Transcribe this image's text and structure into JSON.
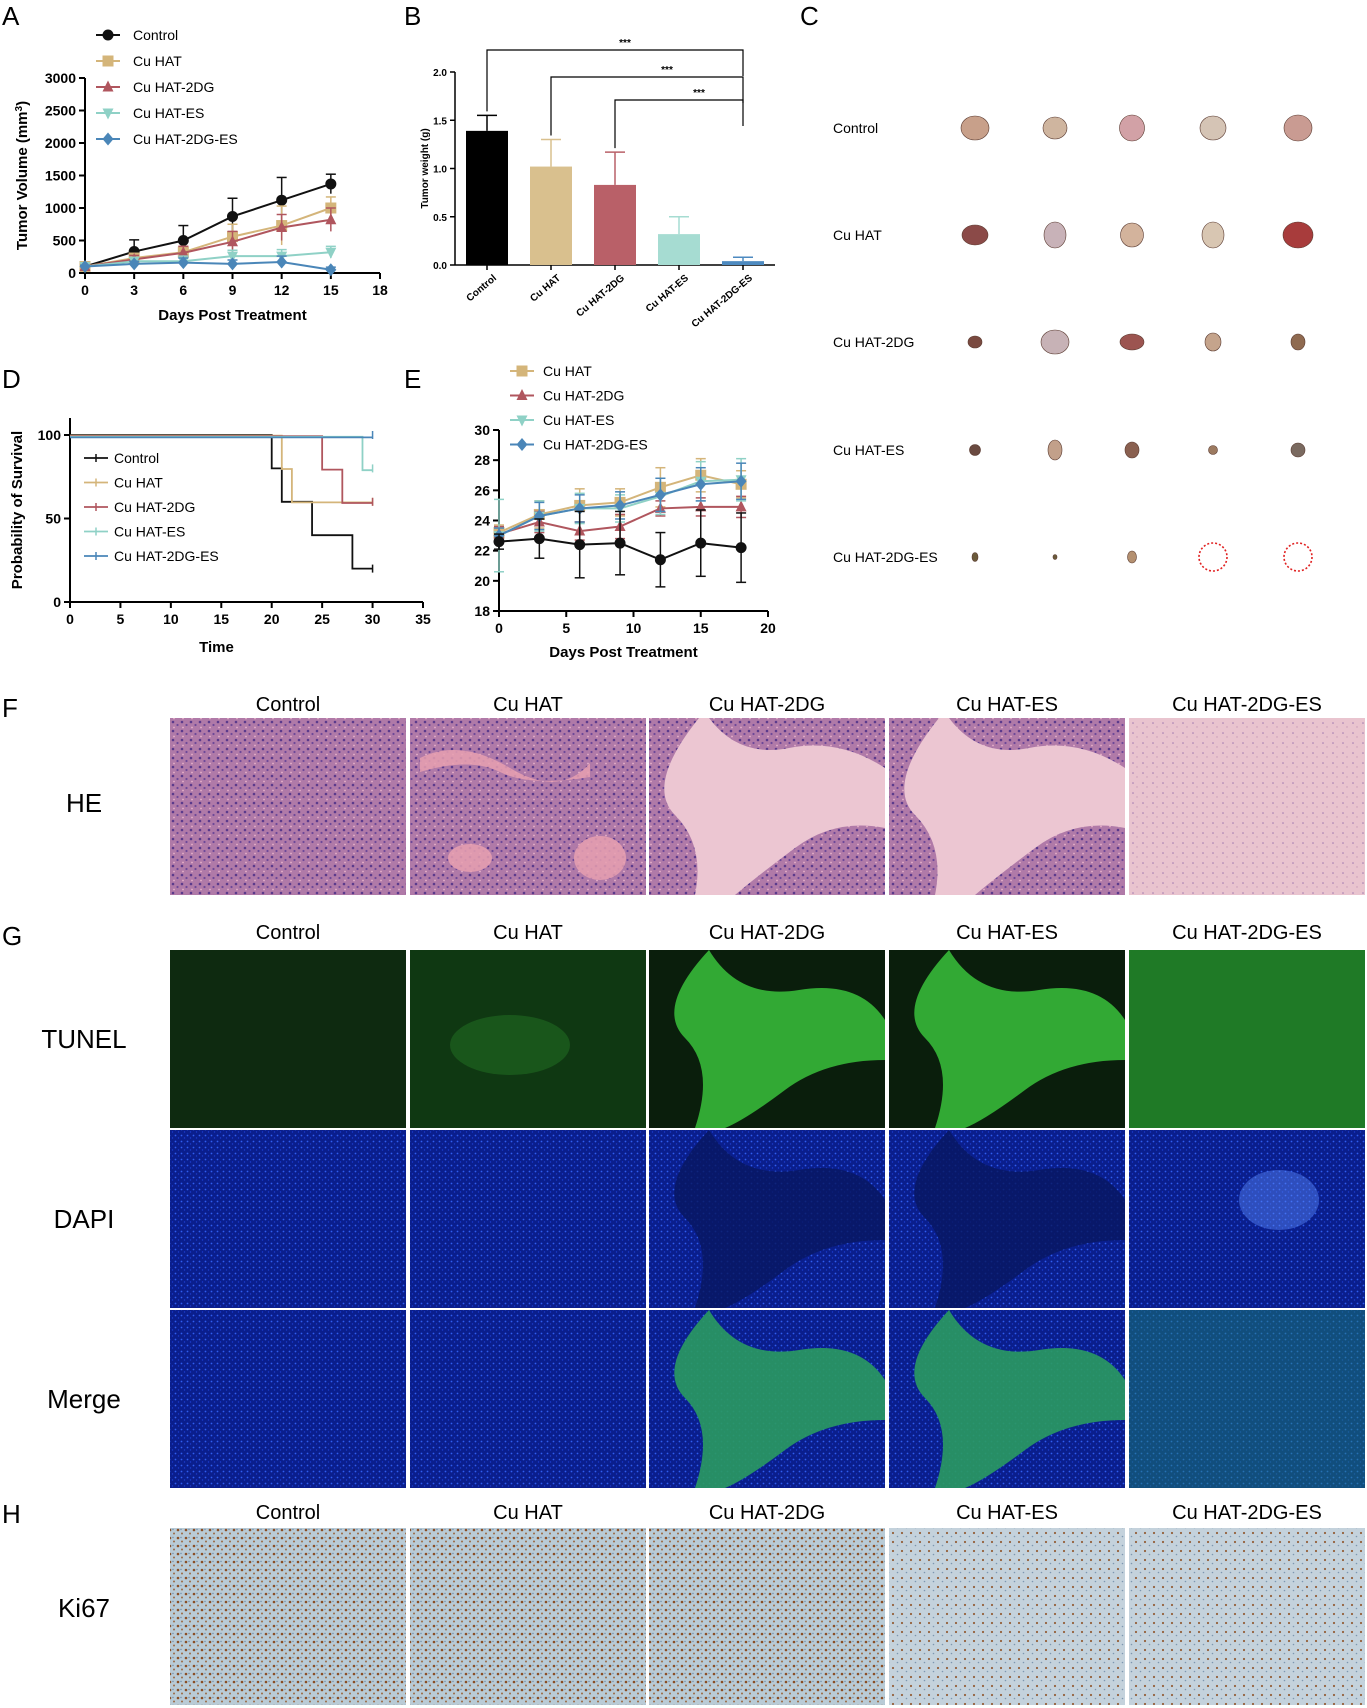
{
  "panels": {
    "A": "A",
    "B": "B",
    "C": "C",
    "D": "D",
    "E": "E",
    "F": "F",
    "G": "G",
    "H": "H"
  },
  "colors": {
    "Control": "#111111",
    "Cu HAT": "#d4b57a",
    "Cu HAT-2DG": "#b0565e",
    "Cu HAT-ES": "#8fd1c6",
    "Cu HAT-2DG-ES": "#4a86b8",
    "fill_C": "#000000",
    "fill_HAT": "#d9c08e",
    "fill_2DG": "#b96068",
    "fill_ES": "#a6dcd2",
    "fill_2DGES": "#4d8ac0",
    "circle": "#e02020"
  },
  "chart_data": [
    {
      "id": "A",
      "type": "line",
      "title": "",
      "xlabel": "Days Post Treatment",
      "ylabel": "Tumor Volume (mm",
      "ylabel_sup": "3",
      "ylabel_tail": ")",
      "xlim": [
        0,
        18
      ],
      "ylim": [
        0,
        3000
      ],
      "xticks": [
        0,
        3,
        6,
        9,
        12,
        15,
        18
      ],
      "yticks": [
        0,
        500,
        1000,
        1500,
        2000,
        2500,
        3000
      ],
      "legend_position": "top-left",
      "series": [
        {
          "name": "Control",
          "marker": "circle",
          "x": [
            0,
            3,
            6,
            9,
            12,
            15
          ],
          "y": [
            100,
            330,
            500,
            870,
            1120,
            1370
          ],
          "err": [
            20,
            180,
            230,
            280,
            350,
            150
          ]
        },
        {
          "name": "Cu HAT",
          "marker": "square",
          "x": [
            0,
            3,
            6,
            9,
            12,
            15
          ],
          "y": [
            100,
            230,
            320,
            560,
            730,
            1000
          ],
          "err": [
            20,
            70,
            90,
            190,
            300,
            170
          ]
        },
        {
          "name": "Cu HAT-2DG",
          "marker": "triangle",
          "x": [
            0,
            3,
            6,
            9,
            12,
            15
          ],
          "y": [
            100,
            210,
            310,
            480,
            700,
            820
          ],
          "err": [
            20,
            60,
            100,
            160,
            200,
            180
          ]
        },
        {
          "name": "Cu HAT-ES",
          "marker": "triangle-down",
          "x": [
            0,
            3,
            6,
            9,
            12,
            15
          ],
          "y": [
            100,
            180,
            180,
            260,
            260,
            320
          ],
          "err": [
            20,
            60,
            80,
            90,
            100,
            90
          ]
        },
        {
          "name": "Cu HAT-2DG-ES",
          "marker": "diamond",
          "x": [
            0,
            3,
            6,
            9,
            12,
            15
          ],
          "y": [
            100,
            140,
            160,
            140,
            170,
            50
          ],
          "err": [
            20,
            40,
            70,
            60,
            90,
            40
          ]
        }
      ]
    },
    {
      "id": "B",
      "type": "bar",
      "title": "",
      "xlabel": "",
      "ylabel": "Tumor weight (g)",
      "ylim": [
        0,
        2.0
      ],
      "yticks": [
        "0.0",
        "0.5",
        "1.0",
        "1.5",
        "2.0"
      ],
      "categories": [
        "Control",
        "Cu HAT",
        "Cu HAT-2DG",
        "Cu HAT-ES",
        "Cu HAT-2DG-ES"
      ],
      "values": [
        1.39,
        1.02,
        0.83,
        0.32,
        0.04
      ],
      "errors": [
        0.16,
        0.28,
        0.34,
        0.18,
        0.04
      ],
      "significance": [
        {
          "from": "Control",
          "to": "Cu HAT-2DG-ES",
          "label": "***"
        },
        {
          "from": "Cu HAT",
          "to": "Cu HAT-2DG-ES",
          "label": "***"
        },
        {
          "from": "Cu HAT-2DG",
          "to": "Cu HAT-2DG-ES",
          "label": "***"
        }
      ]
    },
    {
      "id": "D",
      "type": "line",
      "title": "",
      "xlabel": "Time",
      "ylabel": "Probability of Survival",
      "xlim": [
        0,
        35
      ],
      "ylim": [
        0,
        100
      ],
      "xticks": [
        0,
        5,
        10,
        15,
        20,
        25,
        30,
        35
      ],
      "yticks": [
        0,
        50,
        100
      ],
      "legend_position": "center-left",
      "series": [
        {
          "name": "Control",
          "steps": [
            [
              0,
              100
            ],
            [
              20,
              100
            ],
            [
              20,
              80
            ],
            [
              21,
              80
            ],
            [
              21,
              60
            ],
            [
              24,
              60
            ],
            [
              24,
              40
            ],
            [
              28,
              40
            ],
            [
              28,
              20
            ],
            [
              30,
              20
            ]
          ]
        },
        {
          "name": "Cu HAT",
          "steps": [
            [
              0,
              100
            ],
            [
              21,
              100
            ],
            [
              21,
              80
            ],
            [
              22,
              80
            ],
            [
              22,
              60
            ],
            [
              30,
              60
            ]
          ]
        },
        {
          "name": "Cu HAT-2DG",
          "steps": [
            [
              0,
              100
            ],
            [
              25,
              100
            ],
            [
              25,
              80
            ],
            [
              27,
              80
            ],
            [
              27,
              60
            ],
            [
              30,
              60
            ]
          ]
        },
        {
          "name": "Cu HAT-ES",
          "steps": [
            [
              0,
              100
            ],
            [
              29,
              100
            ],
            [
              29,
              80
            ],
            [
              30,
              80
            ]
          ]
        },
        {
          "name": "Cu HAT-2DG-ES",
          "steps": [
            [
              0,
              100
            ],
            [
              30,
              100
            ]
          ]
        }
      ]
    },
    {
      "id": "E",
      "type": "line",
      "title": "",
      "xlabel": "Days Post Treatment",
      "ylabel": "",
      "xlim": [
        0,
        20
      ],
      "ylim": [
        18,
        30
      ],
      "xticks": [
        0,
        5,
        10,
        15,
        20
      ],
      "yticks": [
        18,
        20,
        22,
        24,
        26,
        28,
        30
      ],
      "legend_position": "top-left",
      "series": [
        {
          "name": "Control",
          "marker": "circle",
          "x": [
            0,
            3,
            6,
            9,
            12,
            15,
            18
          ],
          "y": [
            22.6,
            22.8,
            22.4,
            22.5,
            21.4,
            22.5,
            22.2
          ],
          "err": [
            0.5,
            1.3,
            2.2,
            2.1,
            1.8,
            2.2,
            2.3
          ]
        },
        {
          "name": "Cu HAT",
          "marker": "square",
          "x": [
            0,
            3,
            6,
            9,
            12,
            15,
            18
          ],
          "y": [
            23.2,
            24.4,
            25.0,
            25.2,
            26.2,
            27.0,
            26.4
          ],
          "err": [
            0.5,
            0.9,
            1.1,
            0.9,
            1.3,
            1.1,
            0.9
          ]
        },
        {
          "name": "Cu HAT-2DG",
          "marker": "triangle",
          "x": [
            0,
            3,
            6,
            9,
            12,
            15,
            18
          ],
          "y": [
            23.1,
            23.9,
            23.3,
            23.6,
            24.8,
            24.9,
            24.9
          ],
          "err": [
            0.5,
            0.7,
            0.6,
            0.8,
            0.5,
            0.6,
            0.7
          ]
        },
        {
          "name": "Cu HAT-ES",
          "marker": "triangle-down",
          "x": [
            0,
            3,
            6,
            9,
            12,
            15,
            18
          ],
          "y": [
            23.0,
            24.3,
            24.8,
            24.8,
            25.6,
            26.6,
            26.7
          ],
          "err": [
            2.4,
            1.0,
            1.0,
            0.9,
            1.2,
            1.3,
            1.4
          ]
        },
        {
          "name": "Cu HAT-2DG-ES",
          "marker": "diamond",
          "x": [
            0,
            3,
            6,
            9,
            12,
            15,
            18
          ],
          "y": [
            23.0,
            24.3,
            24.8,
            25.0,
            25.7,
            26.4,
            26.6
          ],
          "err": [
            0.5,
            0.9,
            0.9,
            0.9,
            1.1,
            1.1,
            1.2
          ]
        }
      ]
    }
  ],
  "legend_names": [
    "Control",
    "Cu HAT",
    "Cu HAT-2DG",
    "Cu HAT-ES",
    "Cu HAT-2DG-ES"
  ],
  "legend_names_E": [
    "Cu HAT",
    "Cu HAT-2DG",
    "Cu HAT-ES",
    "Cu HAT-2DG-ES"
  ],
  "panel_c": {
    "rows": [
      "Control",
      "Cu HAT",
      "Cu HAT-2DG",
      "Cu HAT-ES",
      "Cu HAT-2DG-ES"
    ]
  },
  "micro": {
    "columns": [
      "Control",
      "Cu HAT",
      "Cu HAT-2DG",
      "Cu HAT-ES",
      "Cu HAT-2DG-ES"
    ],
    "row_F": "HE",
    "rows_G": [
      "TUNEL",
      "DAPI",
      "Merge"
    ],
    "row_H": "Ki67"
  }
}
